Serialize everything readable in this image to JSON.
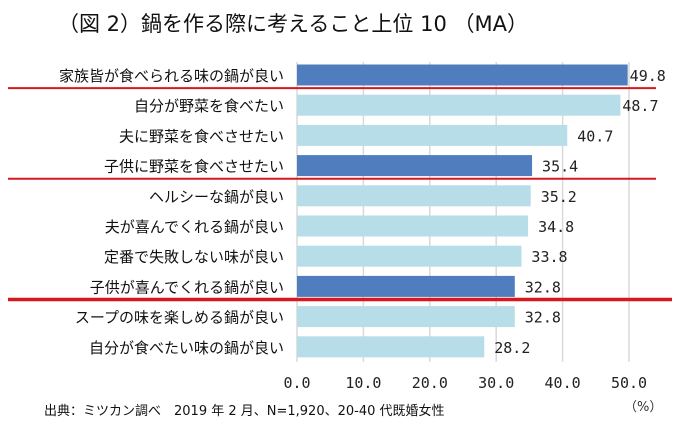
{
  "chart_data": {
    "type": "bar",
    "orientation": "horizontal",
    "title": "（図 2）鍋を作る際に考えること上位 10 （MA）",
    "categories": [
      "家族皆が食べられる味の鍋が良い",
      "自分が野菜を食べたい",
      "夫に野菜を食べさせたい",
      "子供に野菜を食べさせたい",
      "ヘルシーな鍋が良い",
      "夫が喜んでくれる鍋が良い",
      "定番で失敗しない味が良い",
      "子供が喜んでくれる鍋が良い",
      "スープの味を楽しめる鍋が良い",
      "自分が食べたい味の鍋が良い"
    ],
    "values": [
      49.8,
      48.7,
      40.7,
      35.4,
      35.2,
      34.8,
      33.8,
      32.8,
      32.8,
      28.2
    ],
    "data_labels": [
      "49.8",
      "48.7",
      "40.7",
      "35.4",
      "35.2",
      "34.8",
      "33.8",
      "32.8",
      "32.8",
      "28.2"
    ],
    "highlighted": [
      true,
      false,
      false,
      true,
      false,
      false,
      false,
      true,
      false,
      false
    ],
    "underlined_after": [
      0,
      3,
      7
    ],
    "xlim": [
      0,
      50
    ],
    "x_ticks": [
      "0.0",
      "10.0",
      "20.0",
      "30.0",
      "40.0",
      "50.0"
    ],
    "x_unit": "（%）",
    "grid": "vertical",
    "colors": {
      "highlight": "#4f7dbd",
      "normal": "#b7dde8",
      "underline": "#d7191f",
      "grid": "#d9d9d9"
    }
  },
  "source": "出典：ミツカン調べ　2019 年 2 月、N=1,920、20-40 代既婚女性"
}
